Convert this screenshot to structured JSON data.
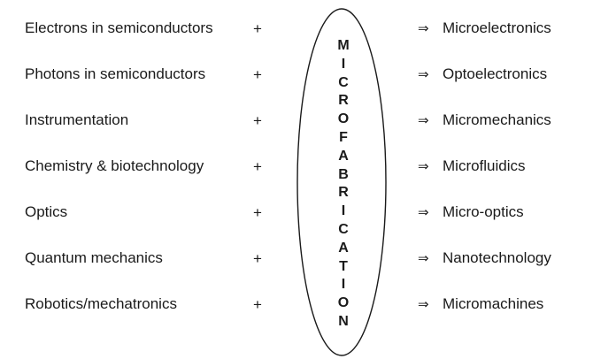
{
  "inputs": [
    "Electrons in semiconductors",
    "Photons in semiconductors",
    "Instrumentation",
    "Chemistry & biotechnology",
    "Optics",
    "Quantum mechanics",
    "Robotics/mechatronics"
  ],
  "plus_symbol": "+",
  "arrow_symbol": "⇒",
  "center_word": "MICROFABRICATION",
  "center_letters": [
    "M",
    "I",
    "C",
    "R",
    "O",
    "F",
    "A",
    "B",
    "R",
    "I",
    "C",
    "A",
    "T",
    "I",
    "O",
    "N"
  ],
  "outputs": [
    "Microelectronics",
    "Optoelectronics",
    "Micromechanics",
    "Microfluidics",
    "Micro-optics",
    "Nanotechnology",
    "Micromachines"
  ]
}
